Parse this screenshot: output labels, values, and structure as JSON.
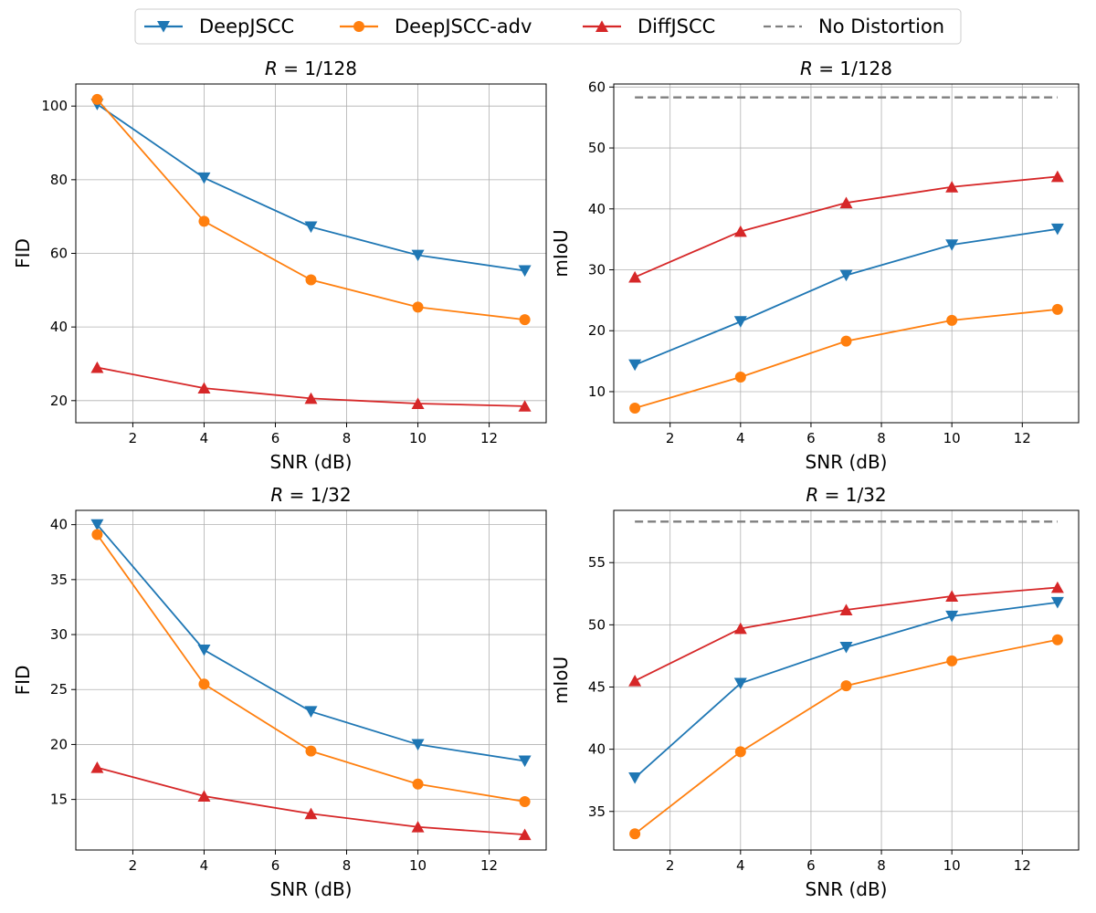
{
  "legend": [
    {
      "name": "DeepJSCC",
      "color": "#1f77b4",
      "marker": "triangle-down",
      "dashed": false
    },
    {
      "name": "DeepJSCC-adv",
      "color": "#ff7f0e",
      "marker": "circle",
      "dashed": false
    },
    {
      "name": "DiffJSCC",
      "color": "#d62728",
      "marker": "triangle-up",
      "dashed": false
    },
    {
      "name": "No Distortion",
      "color": "#7f7f7f",
      "marker": "none",
      "dashed": true
    }
  ],
  "chart_data": [
    {
      "type": "line",
      "title_prefix": "R",
      "title_value": " = 1/128",
      "xlabel": "SNR (dB)",
      "ylabel": "FID",
      "x": [
        1,
        4,
        7,
        10,
        13
      ],
      "xlim": [
        0.4,
        13.6
      ],
      "ylim": [
        14,
        106
      ],
      "xticks": [
        2,
        4,
        6,
        8,
        10,
        12
      ],
      "yticks": [
        20,
        40,
        60,
        80,
        100
      ],
      "grid": true,
      "series": [
        {
          "name": "DeepJSCC",
          "values": [
            100.5,
            80.5,
            67.2,
            59.5,
            55.3
          ]
        },
        {
          "name": "DeepJSCC-adv",
          "values": [
            101.8,
            68.7,
            52.8,
            45.4,
            42.0
          ]
        },
        {
          "name": "DiffJSCC",
          "values": [
            29.0,
            23.4,
            20.6,
            19.2,
            18.5
          ]
        }
      ]
    },
    {
      "type": "line",
      "title_prefix": "R",
      "title_value": " = 1/128",
      "xlabel": "SNR (dB)",
      "ylabel": "mIoU",
      "x": [
        1,
        4,
        7,
        10,
        13
      ],
      "xlim": [
        0.4,
        13.6
      ],
      "ylim": [
        4.9,
        60.5
      ],
      "xticks": [
        2,
        4,
        6,
        8,
        10,
        12
      ],
      "yticks": [
        10,
        20,
        30,
        40,
        50,
        60
      ],
      "grid": true,
      "series": [
        {
          "name": "DeepJSCC",
          "values": [
            14.4,
            21.5,
            29.1,
            34.1,
            36.7
          ]
        },
        {
          "name": "DeepJSCC-adv",
          "values": [
            7.3,
            12.4,
            18.3,
            21.7,
            23.5
          ]
        },
        {
          "name": "DiffJSCC",
          "values": [
            28.8,
            36.3,
            41.0,
            43.6,
            45.3
          ]
        },
        {
          "name": "No Distortion",
          "values": [
            58.3,
            58.3,
            58.3,
            58.3,
            58.3
          ]
        }
      ]
    },
    {
      "type": "line",
      "title_prefix": "R",
      "title_value": " = 1/32",
      "xlabel": "SNR (dB)",
      "ylabel": "FID",
      "x": [
        1,
        4,
        7,
        10,
        13
      ],
      "xlim": [
        0.4,
        13.6
      ],
      "ylim": [
        10.4,
        41.3
      ],
      "xticks": [
        2,
        4,
        6,
        8,
        10,
        12
      ],
      "yticks": [
        15,
        20,
        25,
        30,
        35,
        40
      ],
      "grid": true,
      "series": [
        {
          "name": "DeepJSCC",
          "values": [
            40.0,
            28.6,
            23.0,
            20.0,
            18.5
          ]
        },
        {
          "name": "DeepJSCC-adv",
          "values": [
            39.1,
            25.5,
            19.4,
            16.4,
            14.8
          ]
        },
        {
          "name": "DiffJSCC",
          "values": [
            17.9,
            15.3,
            13.7,
            12.5,
            11.8
          ]
        }
      ]
    },
    {
      "type": "line",
      "title_prefix": "R",
      "title_value": " = 1/32",
      "xlabel": "SNR (dB)",
      "ylabel": "mIoU",
      "x": [
        1,
        4,
        7,
        10,
        13
      ],
      "xlim": [
        0.4,
        13.6
      ],
      "ylim": [
        31.9,
        59.2
      ],
      "xticks": [
        2,
        4,
        6,
        8,
        10,
        12
      ],
      "yticks": [
        35,
        40,
        45,
        50,
        55
      ],
      "grid": true,
      "series": [
        {
          "name": "DeepJSCC",
          "values": [
            37.7,
            45.3,
            48.2,
            50.7,
            51.8
          ]
        },
        {
          "name": "DeepJSCC-adv",
          "values": [
            33.2,
            39.8,
            45.1,
            47.1,
            48.8
          ]
        },
        {
          "name": "DiffJSCC",
          "values": [
            45.5,
            49.7,
            51.2,
            52.3,
            53.0
          ]
        },
        {
          "name": "No Distortion",
          "values": [
            58.3,
            58.3,
            58.3,
            58.3,
            58.3
          ]
        }
      ]
    }
  ]
}
